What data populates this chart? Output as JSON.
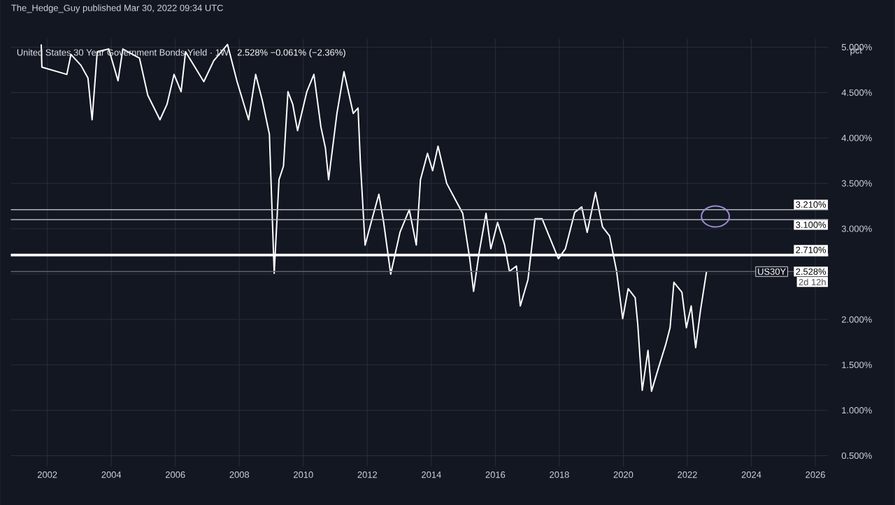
{
  "chart_data": {
    "type": "line",
    "title": "United States 30 Year Government Bonds Yield · 1W",
    "subtitle": "2.528%  −0.061% (−2.36%)",
    "ylabel": "pct",
    "annotations": [
      "The_Hedge_Guy published Mar 30, 2022 09:34 UTC",
      "US30Y",
      "2d 12h"
    ],
    "series": [
      {
        "color": "#ffffff",
        "x": [
          2001.81,
          2001.83,
          2002.61,
          2002.74,
          2003.05,
          2003.27,
          2003.4,
          2003.56,
          2003.92,
          2004.21,
          2004.36,
          2004.88,
          2005.14,
          2005.52,
          2005.74,
          2005.96,
          2006.18,
          2006.32,
          2006.89,
          2007.2,
          2007.63,
          2007.93,
          2008.29,
          2008.51,
          2008.72,
          2008.94,
          2009.09,
          2009.24,
          2009.38,
          2009.52,
          2009.67,
          2009.82,
          2010.11,
          2010.33,
          2010.55,
          2010.69,
          2010.79,
          2011.05,
          2011.27,
          2011.56,
          2011.71,
          2011.78,
          2011.93,
          2012.15,
          2012.36,
          2012.51,
          2012.73,
          2013.02,
          2013.31,
          2013.53,
          2013.66,
          2013.88,
          2014.04,
          2014.21,
          2014.48,
          2014.69,
          2014.98,
          2015.2,
          2015.32,
          2015.49,
          2015.71,
          2015.86,
          2016.07,
          2016.29,
          2016.44,
          2016.66,
          2016.78,
          2017.02,
          2017.24,
          2017.46,
          2017.68,
          2017.97,
          2018.19,
          2018.48,
          2018.7,
          2018.87,
          2019.13,
          2019.35,
          2019.57,
          2019.79,
          2019.98,
          2020.15,
          2020.37,
          2020.45,
          2020.59,
          2020.77,
          2020.88,
          2021.1,
          2021.32,
          2021.46,
          2021.58,
          2021.83,
          2021.97,
          2022.12,
          2022.26,
          2022.41,
          2022.6
        ],
        "values": [
          5.03,
          4.78,
          4.7,
          4.92,
          4.8,
          4.66,
          4.2,
          4.95,
          4.98,
          4.63,
          4.98,
          4.88,
          4.47,
          4.2,
          4.37,
          4.7,
          4.51,
          4.95,
          4.62,
          4.85,
          5.03,
          4.62,
          4.2,
          4.7,
          4.41,
          4.04,
          2.51,
          3.54,
          3.69,
          4.51,
          4.37,
          4.08,
          4.51,
          4.7,
          4.12,
          3.89,
          3.54,
          4.27,
          4.73,
          4.27,
          4.33,
          3.75,
          2.82,
          3.11,
          3.38,
          3.07,
          2.5,
          2.96,
          3.21,
          2.82,
          3.54,
          3.83,
          3.64,
          3.91,
          3.5,
          3.36,
          3.17,
          2.67,
          2.31,
          2.73,
          3.17,
          2.78,
          3.07,
          2.82,
          2.53,
          2.59,
          2.15,
          2.44,
          3.11,
          3.11,
          2.92,
          2.67,
          2.78,
          3.18,
          3.24,
          2.96,
          3.4,
          3.02,
          2.92,
          2.53,
          2.01,
          2.34,
          2.24,
          1.95,
          1.22,
          1.66,
          1.21,
          1.47,
          1.72,
          1.91,
          2.41,
          2.3,
          1.91,
          2.15,
          1.69,
          2.1,
          2.53
        ]
      }
    ],
    "xlim": [
      2000.86,
      2026.4
    ],
    "ylim": [
      0.38,
      5.09
    ],
    "xticks": [
      2002,
      2004,
      2006,
      2008,
      2010,
      2012,
      2014,
      2016,
      2018,
      2020,
      2022,
      2024,
      2026
    ],
    "yticks": [
      {
        "value": 0.5,
        "label": "0.500%"
      },
      {
        "value": 1,
        "label": "1.000%"
      },
      {
        "value": 1.5,
        "label": "1.500%"
      },
      {
        "value": 2,
        "label": "2.000%"
      },
      {
        "value": 2.5,
        "label": null
      },
      {
        "value": 3,
        "label": "3.000%"
      },
      {
        "value": 3.5,
        "label": "3.500%"
      },
      {
        "value": 4,
        "label": "4.000%"
      },
      {
        "value": 4.5,
        "label": "4.500%"
      },
      {
        "value": 5,
        "label": "5.000%"
      }
    ],
    "ref_lines": [
      {
        "axis": "y",
        "value": 3.21,
        "label": "3.210%",
        "color": "#b2b5be"
      },
      {
        "axis": "y",
        "value": 3.1,
        "label": "3.100%",
        "color": "#b2b5be"
      },
      {
        "axis": "y",
        "value": 2.71,
        "label": "2.710%",
        "color": "#ffffff"
      },
      {
        "axis": "y",
        "value": 2.528,
        "label": "2.528%",
        "color": "#5d606b"
      }
    ],
    "grid": true,
    "marker": "none",
    "line_style": "solid"
  }
}
